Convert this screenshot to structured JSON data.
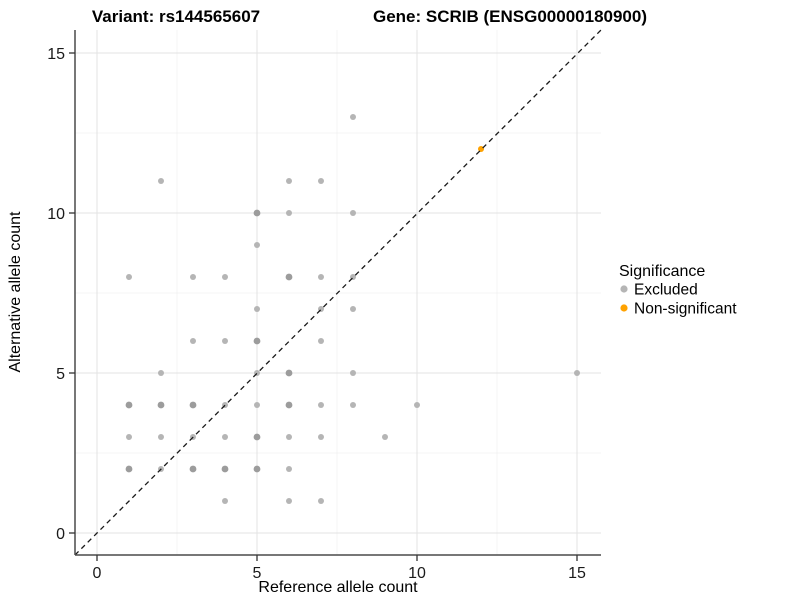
{
  "chart_data": {
    "type": "scatter",
    "title_left": "Variant: rs144565607",
    "title_right": "Gene: SCRIB (ENSG00000180900)",
    "xlabel": "Reference allele count",
    "ylabel": "Alternative allele count",
    "xlim": [
      -0.7,
      15.75
    ],
    "ylim": [
      -0.7,
      15.72
    ],
    "xticks": [
      0,
      5,
      10,
      15
    ],
    "yticks": [
      0,
      5,
      10,
      15
    ],
    "grid": "major and minor gridlines, light gray on white",
    "reference_line": {
      "type": "identity y = x",
      "style": "dashed",
      "color": "#1a1a1a"
    },
    "legend": {
      "title": "Significance",
      "position": "right"
    },
    "series": [
      {
        "name": "Excluded",
        "color": "#b5b5b5",
        "color_overlap": "#9c9c9c",
        "points": [
          [
            1,
            2,
            2
          ],
          [
            1,
            3,
            1
          ],
          [
            1,
            4,
            2
          ],
          [
            1,
            8,
            1
          ],
          [
            2,
            2,
            1
          ],
          [
            2,
            3,
            1
          ],
          [
            2,
            4,
            2
          ],
          [
            2,
            5,
            1
          ],
          [
            2,
            11,
            1
          ],
          [
            3,
            2,
            2
          ],
          [
            3,
            3,
            1
          ],
          [
            3,
            4,
            2
          ],
          [
            3,
            6,
            1
          ],
          [
            3,
            8,
            1
          ],
          [
            4,
            1,
            1
          ],
          [
            4,
            2,
            2
          ],
          [
            4,
            3,
            1
          ],
          [
            4,
            4,
            1
          ],
          [
            4,
            6,
            1
          ],
          [
            4,
            8,
            1
          ],
          [
            5,
            2,
            2
          ],
          [
            5,
            3,
            2
          ],
          [
            5,
            4,
            1
          ],
          [
            5,
            5,
            1
          ],
          [
            5,
            6,
            2
          ],
          [
            5,
            7,
            1
          ],
          [
            5,
            9,
            1
          ],
          [
            5,
            10,
            2
          ],
          [
            6,
            1,
            1
          ],
          [
            6,
            2,
            1
          ],
          [
            6,
            3,
            1
          ],
          [
            6,
            4,
            2
          ],
          [
            6,
            5,
            2
          ],
          [
            6,
            8,
            2
          ],
          [
            6,
            10,
            1
          ],
          [
            6,
            11,
            1
          ],
          [
            7,
            1,
            1
          ],
          [
            7,
            3,
            1
          ],
          [
            7,
            4,
            1
          ],
          [
            7,
            6,
            1
          ],
          [
            7,
            7,
            1
          ],
          [
            7,
            8,
            1
          ],
          [
            7,
            11,
            1
          ],
          [
            8,
            4,
            1
          ],
          [
            8,
            5,
            1
          ],
          [
            8,
            7,
            1
          ],
          [
            8,
            8,
            1
          ],
          [
            8,
            10,
            1
          ],
          [
            8,
            13,
            1
          ],
          [
            9,
            3,
            1
          ],
          [
            10,
            4,
            1
          ],
          [
            15,
            5,
            1
          ]
        ]
      },
      {
        "name": "Non-significant",
        "color": "#ffa200",
        "color_overlap": "#ffa200",
        "points": [
          [
            12,
            12,
            1
          ]
        ]
      }
    ]
  },
  "colors": {
    "major_grid": "#e3e3e3",
    "minor_grid": "#f2f2f2",
    "axis_line": "#4a4a4a",
    "tick_mark": "#333333"
  }
}
